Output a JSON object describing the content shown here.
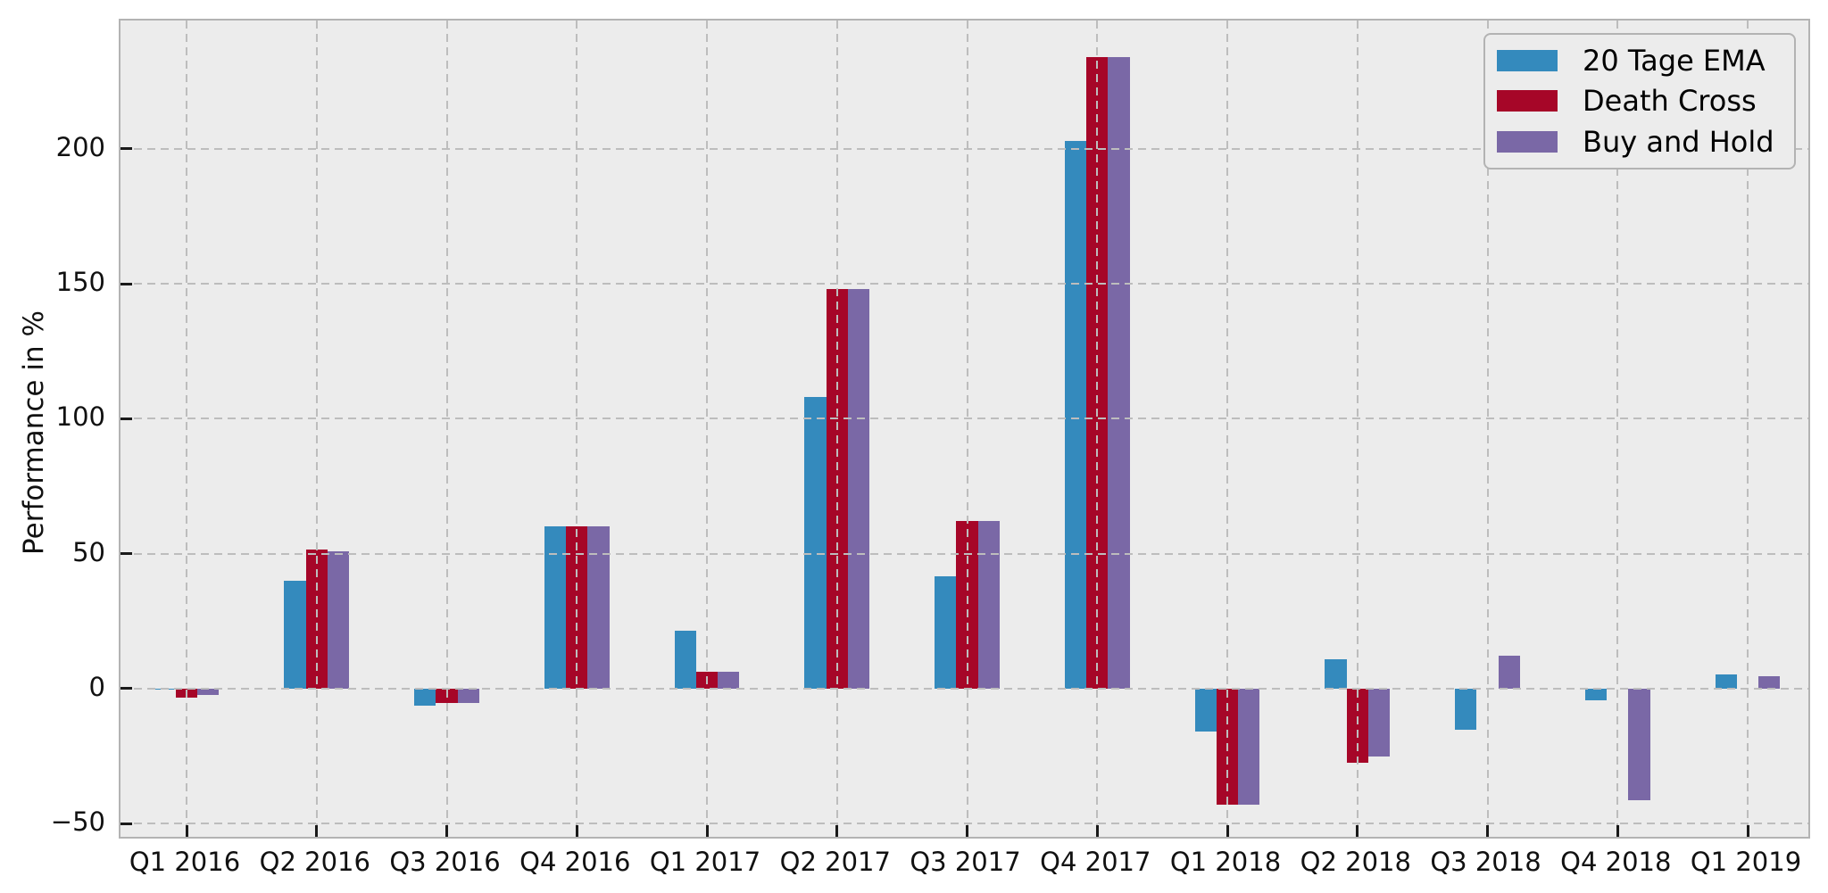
{
  "chart_data": {
    "type": "bar",
    "title": "",
    "xlabel": "",
    "ylabel": "Performance in %",
    "categories": [
      "Q1 2016",
      "Q2 2016",
      "Q3 2016",
      "Q4 2016",
      "Q1 2017",
      "Q2 2017",
      "Q3 2017",
      "Q4 2017",
      "Q1 2018",
      "Q2 2018",
      "Q3 2018",
      "Q4 2018",
      "Q1 2019"
    ],
    "series": [
      {
        "name": "20 Tage EMA",
        "color": "#348ABD",
        "values": [
          -0.5,
          40,
          -6.4,
          60,
          21.5,
          108,
          41.5,
          203,
          -16,
          11,
          -15.4,
          -4.3,
          5.2
        ]
      },
      {
        "name": "Death Cross",
        "color": "#A60628",
        "values": [
          -3.5,
          51.5,
          -5.4,
          60,
          6.4,
          148,
          62,
          234,
          -43,
          -27.4,
          0,
          0,
          0
        ]
      },
      {
        "name": "Buy and Hold",
        "color": "#7A68A6",
        "values": [
          -2.5,
          51,
          -5.2,
          60,
          6.4,
          148,
          62,
          234,
          -43,
          -25.2,
          12.3,
          -41.3,
          4.5
        ]
      }
    ],
    "yticks": [
      -50,
      0,
      50,
      100,
      150,
      200
    ],
    "ytick_labels": [
      "−50",
      "0",
      "50",
      "100",
      "150",
      "200"
    ],
    "ylim": [
      -56.2,
      247.5
    ],
    "grid": true,
    "grid_style": "dashed",
    "legend_position": "upper right"
  },
  "colors": {
    "figure_background": "#ffffff",
    "plot_background": "#ececec",
    "grid": "#bdbdbd",
    "spine": "#b3b3b3",
    "tick": "#1a1a1a",
    "text": "#111111"
  }
}
